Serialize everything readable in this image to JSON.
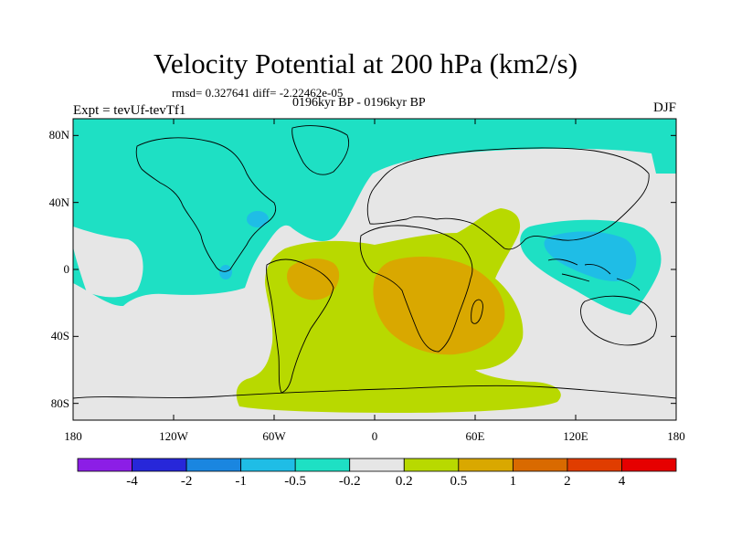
{
  "title": "Velocity Potential at 200 hPa (km2/s)",
  "stats": "rmsd= 0.327641 diff= -2.22462e-05",
  "period": "0196kyr BP - 0196kyr BP",
  "experiment": "Expt = tevUf-tevTf1",
  "season": "DJF",
  "map": {
    "lat_ticks": [
      "80N",
      "40N",
      "0",
      "40S",
      "80S"
    ],
    "lon_ticks": [
      "180",
      "120W",
      "60W",
      "0",
      "60E",
      "120E",
      "180"
    ]
  },
  "colorbar": {
    "labels": [
      "-4",
      "-2",
      "-1",
      "-0.5",
      "-0.2",
      "0.2",
      "0.5",
      "1",
      "2",
      "4"
    ],
    "colors": [
      "#8c1ee6",
      "#2727d9",
      "#1a86e0",
      "#1fbde6",
      "#1ee0c4",
      "#e6e6e6",
      "#b8d900",
      "#d9a800",
      "#d96a00",
      "#e03d00",
      "#e60000"
    ]
  },
  "colors": {
    "neg_small": "#1ee0c4",
    "neg_mid": "#1fbde6",
    "neg_large": "#1a86e0",
    "neutral": "#e6e6e6",
    "pos_small": "#b8d900",
    "pos_mid": "#d9a800"
  }
}
